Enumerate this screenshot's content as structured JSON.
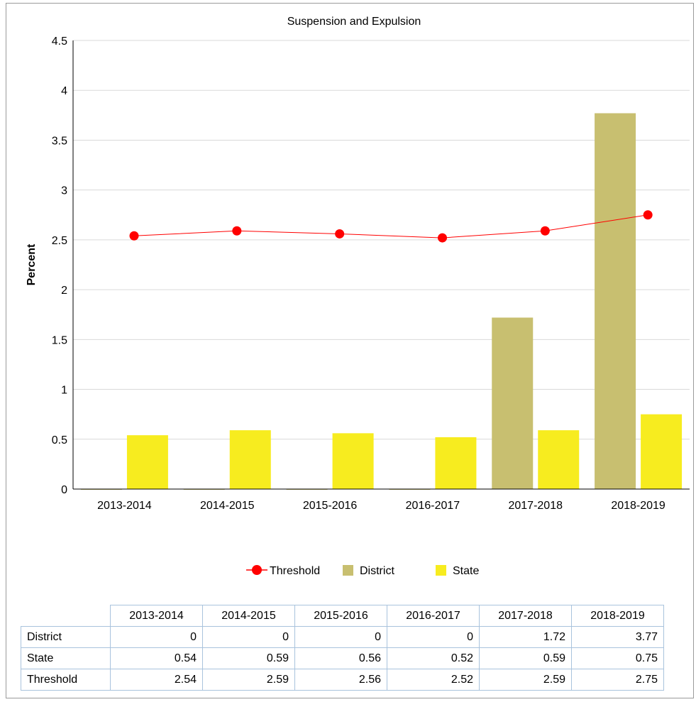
{
  "chart_data": {
    "type": "bar",
    "title": "Suspension and Expulsion",
    "ylabel": "Percent",
    "xlabel": "",
    "ylim": [
      0,
      4.5
    ],
    "yticks": [
      "0",
      "0.5",
      "1",
      "1.5",
      "2",
      "2.5",
      "3",
      "3.5",
      "4",
      "4.5"
    ],
    "categories": [
      "2013-2014",
      "2014-2015",
      "2015-2016",
      "2016-2017",
      "2017-2018",
      "2018-2019"
    ],
    "series": [
      {
        "name": "Threshold",
        "type": "line",
        "color": "#ff0000",
        "values": [
          2.54,
          2.59,
          2.56,
          2.52,
          2.59,
          2.75
        ]
      },
      {
        "name": "District",
        "type": "bar",
        "color": "#c8bf70",
        "values": [
          0,
          0,
          0,
          0,
          1.72,
          3.77
        ]
      },
      {
        "name": "State",
        "type": "bar",
        "color": "#f7ec1f",
        "values": [
          0.54,
          0.59,
          0.56,
          0.52,
          0.59,
          0.75
        ]
      }
    ],
    "grid": true,
    "legend": "bottom"
  },
  "table": {
    "headers": [
      "2013-2014",
      "2014-2015",
      "2015-2016",
      "2016-2017",
      "2017-2018",
      "2018-2019"
    ],
    "rows": [
      {
        "label": "District",
        "values": [
          "0",
          "0",
          "0",
          "0",
          "1.72",
          "3.77"
        ]
      },
      {
        "label": "State",
        "values": [
          "0.54",
          "0.59",
          "0.56",
          "0.52",
          "0.59",
          "0.75"
        ]
      },
      {
        "label": "Threshold",
        "values": [
          "2.54",
          "2.59",
          "2.56",
          "2.52",
          "2.59",
          "2.75"
        ]
      }
    ]
  }
}
